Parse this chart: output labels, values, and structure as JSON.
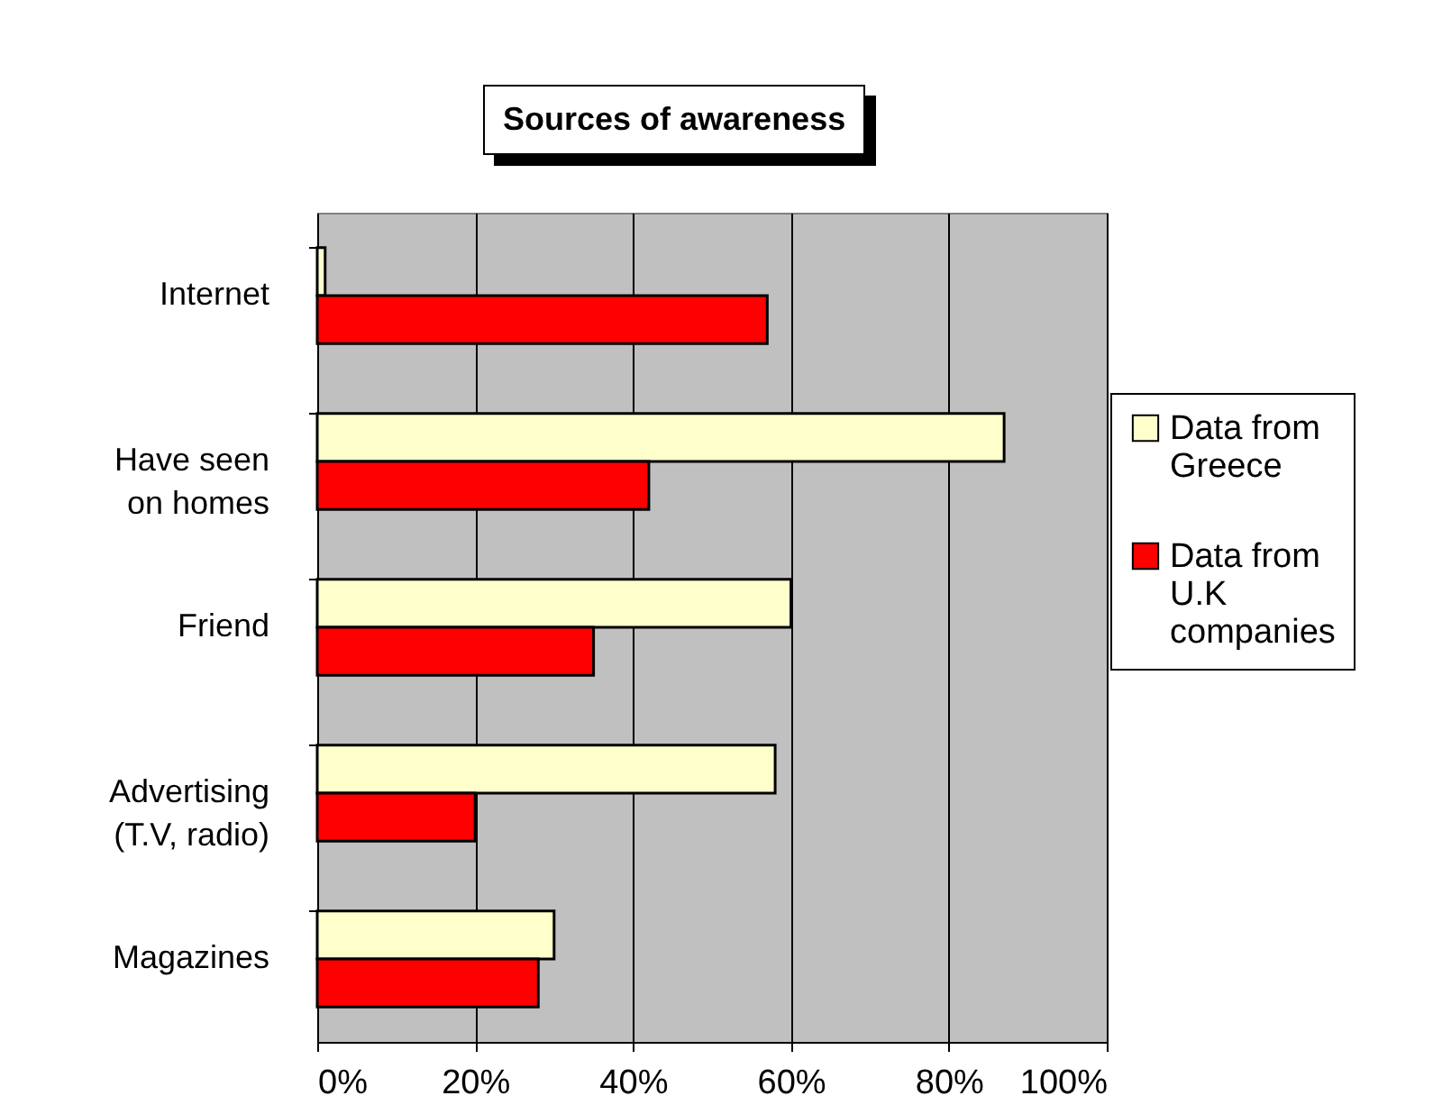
{
  "chart_data": {
    "type": "bar",
    "orientation": "horizontal",
    "title": "Sources of awareness",
    "categories": [
      "Internet",
      "Have seen on homes",
      "Friend",
      "Advertising (T.V, radio)",
      "Magazines"
    ],
    "series": [
      {
        "name": "Data from Greece",
        "color": "#ffffcc",
        "values": [
          1,
          87,
          60,
          58,
          30
        ]
      },
      {
        "name": "Data from U.K companies",
        "color": "#ff0000",
        "values": [
          57,
          42,
          35,
          20,
          28
        ]
      }
    ],
    "xlim": [
      0,
      100
    ],
    "xticks": [
      {
        "value": 0,
        "label": "0%"
      },
      {
        "value": 20,
        "label": "20%"
      },
      {
        "value": 40,
        "label": "40%"
      },
      {
        "value": 60,
        "label": "60%"
      },
      {
        "value": 80,
        "label": "80%"
      },
      {
        "value": 100,
        "label": "100%"
      }
    ],
    "grid": "x",
    "legend": "right"
  }
}
